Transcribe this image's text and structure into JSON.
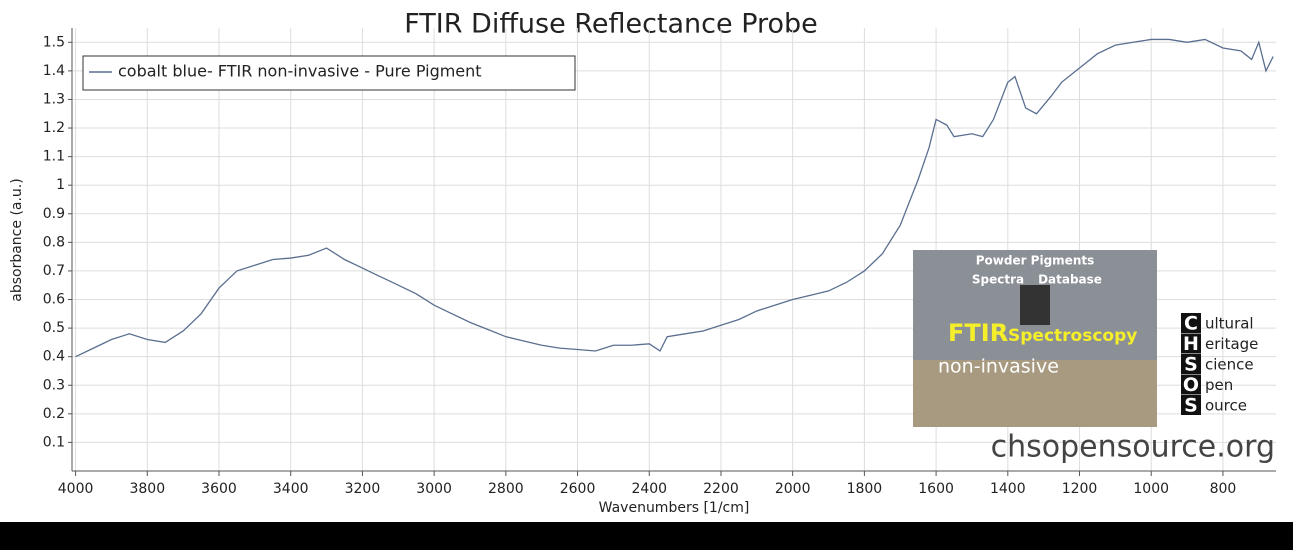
{
  "chart_data": {
    "type": "line",
    "title": "FTIR Diffuse Reflectance Probe",
    "x_label": "Wavenumbers [1/cm]",
    "y_label": "absorbance (a.u.)",
    "x": [
      4000,
      3950,
      3900,
      3850,
      3800,
      3750,
      3700,
      3650,
      3600,
      3550,
      3500,
      3450,
      3400,
      3350,
      3300,
      3250,
      3200,
      3150,
      3100,
      3050,
      3000,
      2950,
      2900,
      2850,
      2800,
      2750,
      2700,
      2650,
      2600,
      2550,
      2500,
      2450,
      2400,
      2370,
      2350,
      2300,
      2250,
      2200,
      2150,
      2100,
      2050,
      2000,
      1950,
      1900,
      1850,
      1800,
      1750,
      1700,
      1650,
      1620,
      1600,
      1570,
      1550,
      1500,
      1470,
      1440,
      1400,
      1380,
      1350,
      1320,
      1280,
      1250,
      1200,
      1150,
      1100,
      1050,
      1000,
      950,
      900,
      850,
      800,
      750,
      720,
      700,
      680,
      660
    ],
    "series": [
      {
        "name": "cobalt blue- FTIR non-invasive - Pure Pigment",
        "color": "#5a6f90",
        "values": [
          0.4,
          0.43,
          0.46,
          0.48,
          0.46,
          0.45,
          0.49,
          0.55,
          0.64,
          0.7,
          0.72,
          0.74,
          0.745,
          0.755,
          0.78,
          0.74,
          0.71,
          0.68,
          0.65,
          0.62,
          0.58,
          0.55,
          0.52,
          0.495,
          0.47,
          0.455,
          0.44,
          0.43,
          0.425,
          0.42,
          0.44,
          0.44,
          0.445,
          0.42,
          0.47,
          0.48,
          0.49,
          0.51,
          0.53,
          0.56,
          0.58,
          0.6,
          0.615,
          0.63,
          0.66,
          0.7,
          0.76,
          0.86,
          1.02,
          1.13,
          1.23,
          1.21,
          1.17,
          1.18,
          1.17,
          1.23,
          1.36,
          1.38,
          1.27,
          1.25,
          1.31,
          1.36,
          1.41,
          1.46,
          1.49,
          1.5,
          1.51,
          1.51,
          1.5,
          1.51,
          1.48,
          1.47,
          1.44,
          1.5,
          1.4,
          1.45
        ]
      }
    ],
    "xlim": [
      4010,
      652
    ],
    "ylim": [
      0,
      1.55
    ],
    "xticks": [
      4000,
      3800,
      3600,
      3400,
      3200,
      3000,
      2800,
      2600,
      2400,
      2200,
      2000,
      1800,
      1600,
      1400,
      1200,
      1000,
      800
    ],
    "yticks": [
      0.1,
      0.2,
      0.3,
      0.4,
      0.5,
      0.6,
      0.7,
      0.8,
      0.9,
      1,
      1.1,
      1.2,
      1.3,
      1.4,
      1.5
    ],
    "grid": true,
    "legend": "upper left"
  },
  "branding": {
    "photo_lines": [
      "Powder Pigments",
      "Spectra",
      "Database"
    ],
    "photo_title": "FTIR",
    "photo_subtitle": "Spectroscopy",
    "photo_tag": "non-invasive",
    "logo": [
      [
        "C",
        "ultural"
      ],
      [
        "H",
        "eritage"
      ],
      [
        "S",
        "cience"
      ],
      [
        "O",
        "pen"
      ],
      [
        "S",
        "ource"
      ]
    ],
    "url": "chsopensource.org"
  }
}
